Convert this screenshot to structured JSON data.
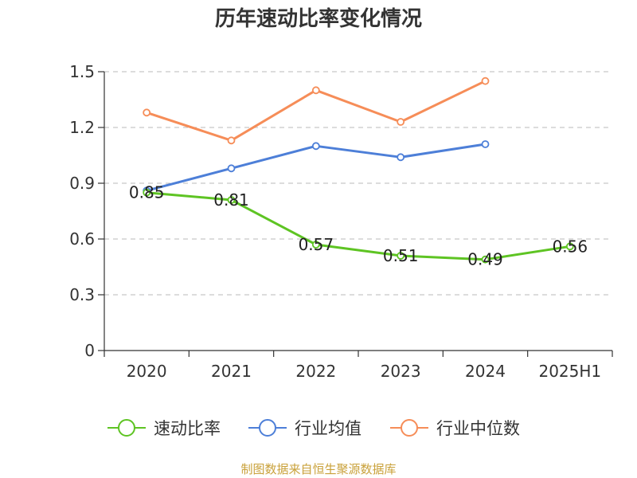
{
  "chart_data": {
    "type": "line",
    "title": "历年速动比率变化情况",
    "categories": [
      "2020",
      "2021",
      "2022",
      "2023",
      "2024",
      "2025H1"
    ],
    "ylim": [
      0,
      1.5
    ],
    "yticks": [
      "0",
      "0.3",
      "0.6",
      "0.9",
      "1.2",
      "1.5"
    ],
    "grid": true,
    "legend_position": "bottom",
    "series": [
      {
        "name": "速动比率",
        "color": "#5ec423",
        "values": [
          0.85,
          0.81,
          0.57,
          0.51,
          0.49,
          0.56
        ],
        "labels": [
          "0.85",
          "0.81",
          "0.57",
          "0.51",
          "0.49",
          "0.56"
        ]
      },
      {
        "name": "行业均值",
        "color": "#4d7fd8",
        "values": [
          0.86,
          0.98,
          1.1,
          1.04,
          1.11,
          null
        ]
      },
      {
        "name": "行业中位数",
        "color": "#f68d58",
        "values": [
          1.28,
          1.13,
          1.4,
          1.23,
          1.45,
          null
        ]
      }
    ],
    "source": "制图数据来自恒生聚源数据库"
  }
}
